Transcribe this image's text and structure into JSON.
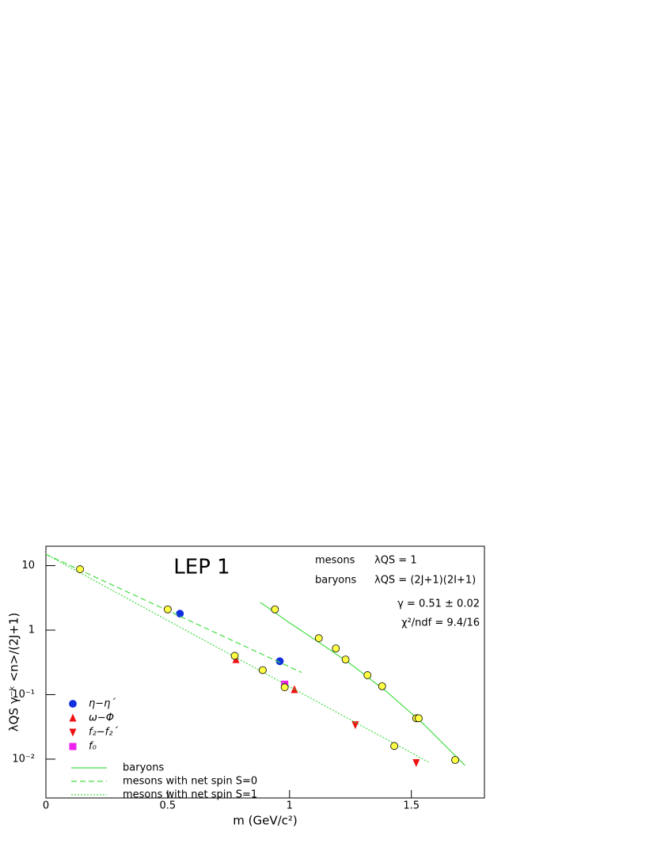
{
  "chart_data": {
    "type": "scatter",
    "title": "LEP 1",
    "annotations": [
      "mesons",
      "λQS = 1",
      "baryons",
      "λQS = (2J+1)(2I+1)",
      "γ = 0.51 ± 0.02",
      "χ²/ndf = 9.4/16"
    ],
    "xlabel": "m  (GeV/c²)",
    "ylabel": "λQS γ⁻ᵏ <n>/(2J+1)",
    "xlim": [
      0,
      1.8
    ],
    "xticks": [
      0,
      0.5,
      1,
      1.5
    ],
    "ylim": [
      0.0025,
      20
    ],
    "yscale": "log",
    "yticks": [
      10,
      1,
      {
        "value": 0.1,
        "label": "10⁻¹"
      },
      {
        "value": 0.01,
        "label": "10⁻²"
      }
    ],
    "points": {
      "color": "#ffff44",
      "x": [
        0.14,
        0.5,
        0.775,
        0.89,
        0.98,
        0.94,
        1.12,
        1.19,
        1.23,
        1.32,
        1.38,
        1.43,
        1.52,
        1.53,
        1.68
      ],
      "values": [
        8.8,
        2.1,
        0.4,
        0.24,
        0.13,
        2.1,
        0.75,
        0.52,
        0.35,
        0.2,
        0.135,
        0.016,
        0.043,
        0.043,
        0.0097
      ]
    },
    "series": [
      {
        "name": "η−η´",
        "color": "#1030e0",
        "marker": "circle",
        "x": [
          0.55,
          0.96
        ],
        "values": [
          1.8,
          0.33
        ]
      },
      {
        "name": "ω−Φ",
        "color": "#ee1111",
        "marker": "triangle-up",
        "x": [
          0.78,
          1.02
        ],
        "values": [
          0.35,
          0.12
        ]
      },
      {
        "name": "f₂−f₂´",
        "color": "#ee1111",
        "marker": "triangle-down",
        "x": [
          1.27,
          1.52
        ],
        "values": [
          0.034,
          0.0088
        ]
      },
      {
        "name": "f₀",
        "color": "#ee22ee",
        "marker": "square",
        "x": [
          0.98
        ],
        "values": [
          0.145
        ]
      },
      {
        "name": "baryons",
        "color": "#44dd44",
        "line": "solid",
        "x": [
          0.88,
          1.0,
          1.12,
          1.25,
          1.4,
          1.55,
          1.72
        ],
        "values": [
          2.7,
          1.3,
          0.65,
          0.3,
          0.11,
          0.035,
          0.008
        ]
      },
      {
        "name": "mesons with net spin S=0",
        "color": "#44dd44",
        "line": "dashed",
        "x": [
          0,
          1.05
        ],
        "values": [
          15,
          0.22
        ]
      },
      {
        "name": "mesons with net spin S=1",
        "color": "#44dd44",
        "line": "dotted",
        "x": [
          0,
          1.57
        ],
        "values": [
          15,
          0.009
        ]
      }
    ]
  }
}
